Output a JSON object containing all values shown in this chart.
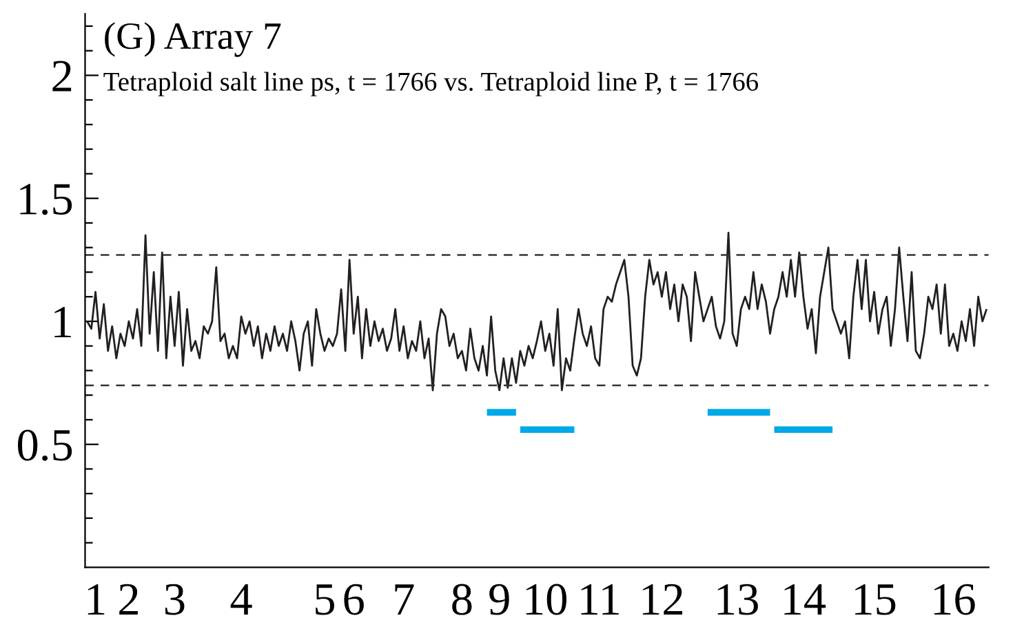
{
  "chart_data": {
    "type": "line",
    "title": "(G) Array 7",
    "subtitle": "Tetraploid salt line ps, t = 1766 vs. Tetraploid line P, t = 1766",
    "categories": [
      null,
      null,
      "1",
      null,
      null,
      null,
      null,
      null,
      null,
      null,
      "2",
      null,
      null,
      null,
      null,
      null,
      null,
      null,
      null,
      null,
      null,
      "3",
      null,
      null,
      null,
      null,
      null,
      null,
      null,
      null,
      null,
      null,
      null,
      null,
      null,
      null,
      null,
      "4",
      null,
      null,
      null,
      null,
      null,
      null,
      null,
      null,
      null,
      null,
      null,
      null,
      null,
      null,
      null,
      null,
      null,
      null,
      null,
      "5",
      null,
      null,
      null,
      null,
      null,
      null,
      "6",
      null,
      null,
      null,
      null,
      null,
      null,
      null,
      null,
      null,
      null,
      null,
      "7",
      null,
      null,
      null,
      null,
      null,
      null,
      null,
      null,
      null,
      null,
      null,
      null,
      null,
      "8",
      null,
      null,
      null,
      null,
      null,
      null,
      null,
      null,
      "9",
      null,
      null,
      null,
      null,
      null,
      null,
      null,
      null,
      null,
      null,
      "10",
      null,
      null,
      null,
      null,
      null,
      null,
      null,
      null,
      null,
      null,
      null,
      null,
      "11",
      null,
      null,
      null,
      null,
      null,
      null,
      null,
      null,
      null,
      null,
      null,
      null,
      null,
      null,
      "12",
      null,
      null,
      null,
      null,
      null,
      null,
      null,
      null,
      null,
      null,
      null,
      null,
      null,
      null,
      null,
      null,
      null,
      "13",
      null,
      null,
      null,
      null,
      null,
      null,
      null,
      null,
      null,
      null,
      null,
      null,
      null,
      null,
      null,
      "14",
      null,
      null,
      null,
      null,
      null,
      null,
      null,
      null,
      null,
      null,
      null,
      null,
      null,
      null,
      null,
      null,
      "15",
      null,
      null,
      null,
      null,
      null,
      null,
      null,
      null,
      null,
      null,
      null,
      null,
      null,
      null,
      null,
      null,
      null,
      null,
      "16",
      null,
      null,
      null,
      null,
      null,
      null,
      null,
      null
    ],
    "ylim": [
      0,
      2.25
    ],
    "yticks": [
      {
        "value": 0.1,
        "label": null
      },
      {
        "value": 0.2,
        "label": null
      },
      {
        "value": 0.3,
        "label": null
      },
      {
        "value": 0.4,
        "label": null
      },
      0.5,
      {
        "value": 0.6,
        "label": null
      },
      {
        "value": 0.7,
        "label": null
      },
      {
        "value": 0.8,
        "label": null
      },
      {
        "value": 0.9,
        "label": null
      },
      1,
      {
        "value": 1.1,
        "label": null
      },
      {
        "value": 1.2,
        "label": null
      },
      {
        "value": 1.3,
        "label": null
      },
      {
        "value": 1.4,
        "label": null
      },
      1.5,
      {
        "value": 1.6,
        "label": null
      },
      {
        "value": 1.7,
        "label": null
      },
      {
        "value": 1.8,
        "label": null
      },
      {
        "value": 1.9,
        "label": null
      },
      2,
      {
        "value": 2.1,
        "label": null
      },
      {
        "value": 2.2,
        "label": null
      }
    ],
    "line_style": "solid",
    "ref_lines": [
      {
        "axis": "y",
        "value": 1.27,
        "label": null,
        "color": "#333333",
        "line_style": "dashed"
      },
      {
        "axis": "y",
        "value": 0.74,
        "label": null,
        "color": "#333333",
        "line_style": "dashed"
      }
    ],
    "series": [
      {
        "color": "#231f20",
        "values": [
          1.0,
          0.97,
          1.12,
          0.93,
          1.07,
          0.88,
          0.98,
          0.85,
          0.95,
          0.9,
          1.0,
          0.93,
          1.05,
          0.9,
          1.35,
          0.95,
          1.2,
          0.88,
          1.28,
          0.85,
          1.1,
          0.9,
          1.12,
          0.82,
          1.05,
          0.88,
          0.92,
          0.85,
          0.98,
          0.95,
          1.0,
          1.22,
          0.92,
          0.95,
          0.85,
          0.9,
          0.85,
          1.02,
          0.95,
          1.0,
          0.9,
          0.98,
          0.85,
          0.95,
          0.88,
          0.98,
          0.9,
          0.95,
          0.88,
          1.0,
          0.92,
          0.8,
          0.95,
          1.0,
          0.82,
          1.05,
          0.95,
          0.88,
          0.93,
          0.9,
          0.95,
          1.13,
          0.88,
          1.25,
          0.95,
          1.1,
          0.85,
          1.05,
          0.9,
          1.0,
          0.92,
          0.97,
          0.88,
          0.93,
          1.05,
          0.88,
          0.98,
          0.85,
          0.92,
          0.88,
          1.0,
          0.85,
          0.93,
          0.72,
          0.95,
          1.05,
          1.02,
          0.9,
          0.95,
          0.85,
          0.88,
          0.8,
          0.97,
          0.85,
          0.8,
          0.9,
          0.78,
          1.02,
          0.8,
          0.72,
          0.85,
          0.73,
          0.85,
          0.75,
          0.88,
          0.82,
          0.9,
          0.85,
          0.92,
          1.0,
          0.88,
          0.95,
          0.82,
          1.05,
          0.72,
          0.85,
          0.8,
          0.93,
          1.05,
          0.95,
          0.9,
          0.98,
          0.85,
          0.82,
          1.05,
          1.1,
          1.08,
          1.15,
          1.2,
          1.25,
          1.1,
          0.82,
          0.78,
          0.85,
          1.1,
          1.25,
          1.15,
          1.2,
          1.1,
          1.2,
          1.05,
          1.15,
          1.0,
          1.15,
          1.1,
          0.92,
          1.2,
          1.1,
          1.0,
          1.05,
          1.1,
          0.98,
          0.93,
          1.0,
          1.36,
          0.95,
          0.9,
          1.05,
          1.1,
          1.05,
          1.2,
          1.05,
          1.15,
          1.08,
          0.95,
          1.05,
          1.1,
          1.2,
          1.1,
          1.25,
          1.1,
          1.28,
          1.1,
          0.97,
          1.05,
          0.87,
          1.1,
          1.2,
          1.3,
          1.05,
          1.0,
          0.95,
          1.0,
          0.85,
          1.1,
          1.25,
          1.05,
          1.25,
          1.0,
          1.12,
          0.95,
          1.05,
          1.1,
          0.9,
          1.05,
          1.3,
          1.1,
          0.92,
          1.2,
          0.88,
          0.85,
          0.95,
          1.1,
          1.05,
          1.15,
          0.95,
          1.15,
          0.9,
          0.95,
          0.88,
          1.0,
          0.92,
          1.05,
          0.9,
          1.1,
          1.0,
          1.05
        ]
      },
      {
        "color": "#00a9e8",
        "values": [
          null,
          null,
          null,
          null,
          null,
          null,
          null,
          null,
          null,
          null,
          null,
          null,
          null,
          null,
          null,
          null,
          null,
          null,
          null,
          null,
          null,
          null,
          null,
          null,
          null,
          null,
          null,
          null,
          null,
          null,
          null,
          null,
          null,
          null,
          null,
          null,
          null,
          null,
          null,
          null,
          null,
          null,
          null,
          null,
          null,
          null,
          null,
          null,
          null,
          null,
          null,
          null,
          null,
          null,
          null,
          null,
          null,
          null,
          null,
          null,
          null,
          null,
          null,
          null,
          null,
          null,
          null,
          null,
          null,
          null,
          null,
          null,
          null,
          null,
          null,
          null,
          null,
          null,
          null,
          null,
          null,
          null,
          null,
          null,
          null,
          null,
          null,
          null,
          null,
          null,
          null,
          null,
          null,
          null,
          null,
          null,
          0.63,
          0.63,
          0.63,
          0.63,
          0.63,
          0.63,
          0.63,
          0.63,
          null,
          null,
          null,
          null,
          null,
          null,
          null,
          null,
          null,
          null,
          null,
          null,
          null,
          null,
          null,
          null,
          null,
          null,
          null,
          null,
          null,
          null,
          null,
          null,
          null,
          null,
          null,
          null,
          null,
          null,
          null,
          null,
          null,
          null,
          null,
          null,
          null,
          null,
          null,
          null,
          null,
          null,
          null,
          null,
          null,
          0.63,
          0.63,
          0.63,
          0.63,
          0.63,
          0.63,
          0.63,
          0.63,
          0.63,
          0.63,
          0.63,
          0.63,
          0.63,
          0.63,
          0.63,
          0.63,
          null,
          null,
          null,
          null,
          null,
          null,
          null,
          null,
          null,
          null,
          null,
          null,
          null,
          null,
          null,
          null,
          null,
          null,
          null,
          null,
          null,
          null,
          null,
          null,
          null,
          null,
          null,
          null,
          null,
          null,
          null,
          null,
          null,
          null,
          null,
          null,
          null,
          null,
          null,
          null,
          null,
          null,
          null,
          null,
          null,
          null,
          null,
          null,
          null,
          null,
          null,
          null
        ]
      },
      {
        "color": "#00a9e8",
        "values": [
          null,
          null,
          null,
          null,
          null,
          null,
          null,
          null,
          null,
          null,
          null,
          null,
          null,
          null,
          null,
          null,
          null,
          null,
          null,
          null,
          null,
          null,
          null,
          null,
          null,
          null,
          null,
          null,
          null,
          null,
          null,
          null,
          null,
          null,
          null,
          null,
          null,
          null,
          null,
          null,
          null,
          null,
          null,
          null,
          null,
          null,
          null,
          null,
          null,
          null,
          null,
          null,
          null,
          null,
          null,
          null,
          null,
          null,
          null,
          null,
          null,
          null,
          null,
          null,
          null,
          null,
          null,
          null,
          null,
          null,
          null,
          null,
          null,
          null,
          null,
          null,
          null,
          null,
          null,
          null,
          null,
          null,
          null,
          null,
          null,
          null,
          null,
          null,
          null,
          null,
          null,
          null,
          null,
          null,
          null,
          null,
          null,
          null,
          null,
          null,
          null,
          null,
          null,
          null,
          0.56,
          0.56,
          0.56,
          0.56,
          0.56,
          0.56,
          0.56,
          0.56,
          0.56,
          0.56,
          0.56,
          0.56,
          0.56,
          0.56,
          null,
          null,
          null,
          null,
          null,
          null,
          null,
          null,
          null,
          null,
          null,
          null,
          null,
          null,
          null,
          null,
          null,
          null,
          null,
          null,
          null,
          null,
          null,
          null,
          null,
          null,
          null,
          null,
          null,
          null,
          null,
          null,
          null,
          null,
          null,
          null,
          null,
          null,
          null,
          null,
          null,
          null,
          null,
          null,
          null,
          null,
          null,
          0.56,
          0.56,
          0.56,
          0.56,
          0.56,
          0.56,
          0.56,
          0.56,
          0.56,
          0.56,
          0.56,
          0.56,
          0.56,
          0.56,
          0.56,
          null,
          null,
          null,
          null,
          null,
          null,
          null,
          null,
          null,
          null,
          null,
          null,
          null,
          null,
          null,
          null,
          null,
          null,
          null,
          null,
          null,
          null,
          null,
          null,
          null,
          null,
          null,
          null,
          null,
          null,
          null,
          null,
          null,
          null,
          null,
          null,
          null
        ]
      }
    ]
  }
}
